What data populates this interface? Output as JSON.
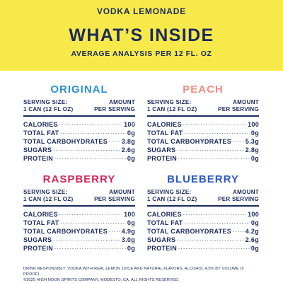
{
  "header": {
    "kicker": "VODKA LEMONADE",
    "title": "WHAT’S INSIDE",
    "subtitle": "AVERAGE ANALYSIS PER 12 FL. OZ"
  },
  "colors": {
    "header_bg": "#f7e94a",
    "navy": "#1a2a5e",
    "original": "#2b8fd1",
    "peach": "#f08c7c",
    "raspberry": "#d4255e",
    "blueberry": "#2a57c4"
  },
  "panels": [
    {
      "flavor": "ORIGINAL",
      "serving_size_label": "SERVING SIZE:",
      "serving_size_value": "1 CAN (12 FL OZ)",
      "amount_label": "AMOUNT",
      "per_serving_label": "PER SERVING",
      "rows": [
        {
          "label": "CALORIES",
          "value": "100"
        },
        {
          "label": "TOTAL FAT",
          "value": "0g"
        },
        {
          "label": "TOTAL CARBOHYDRATES",
          "value": "3.8g"
        },
        {
          "label": "SUGARS",
          "value": "2.6g"
        },
        {
          "label": "PROTEIN",
          "value": "0g"
        }
      ]
    },
    {
      "flavor": "PEACH",
      "serving_size_label": "SERVING SIZE:",
      "serving_size_value": "1 CAN (12 FL OZ)",
      "amount_label": "AMOUNT",
      "per_serving_label": "PER SERVING",
      "rows": [
        {
          "label": "CALORIES",
          "value": "100"
        },
        {
          "label": "TOTAL FAT",
          "value": "0g"
        },
        {
          "label": "TOTAL CARBOHYDRATES",
          "value": "5.3g"
        },
        {
          "label": "SUGARS",
          "value": "2.8g"
        },
        {
          "label": "PROTEIN",
          "value": "0g"
        }
      ]
    },
    {
      "flavor": "RASPBERRY",
      "serving_size_label": "SERVING SIZE:",
      "serving_size_value": "1 CAN (12 FL OZ)",
      "amount_label": "AMOUNT",
      "per_serving_label": "PER SERVING",
      "rows": [
        {
          "label": "CALORIES",
          "value": "100"
        },
        {
          "label": "TOTAL FAT",
          "value": "0g"
        },
        {
          "label": "TOTAL CARBOHYDRATES",
          "value": "4.9g"
        },
        {
          "label": "SUGARS",
          "value": "3.0g"
        },
        {
          "label": "PROTEIN",
          "value": "0g"
        }
      ]
    },
    {
      "flavor": "BLUEBERRY",
      "serving_size_label": "SERVING SIZE:",
      "serving_size_value": "1 CAN (12 FL OZ)",
      "amount_label": "AMOUNT",
      "per_serving_label": "PER SERVING",
      "rows": [
        {
          "label": "CALORIES",
          "value": "100"
        },
        {
          "label": "TOTAL FAT",
          "value": "0g"
        },
        {
          "label": "TOTAL CARBOHYDRATES",
          "value": "4.2g"
        },
        {
          "label": "SUGARS",
          "value": "2.6g"
        },
        {
          "label": "PROTEIN",
          "value": "0g"
        }
      ]
    }
  ],
  "footer": {
    "line1": "DRINK RESPONSIBLY. VODKA WITH REAL LEMON JUICE AND NATURAL FLAVORS, ALCOHOL 4.5% BY VOLUME (9 PROOF).",
    "line2": "©2025 HIGH NOON SPIRITS COMPANY, MODESTO, CA. ALL RIGHTS RESERVED."
  }
}
